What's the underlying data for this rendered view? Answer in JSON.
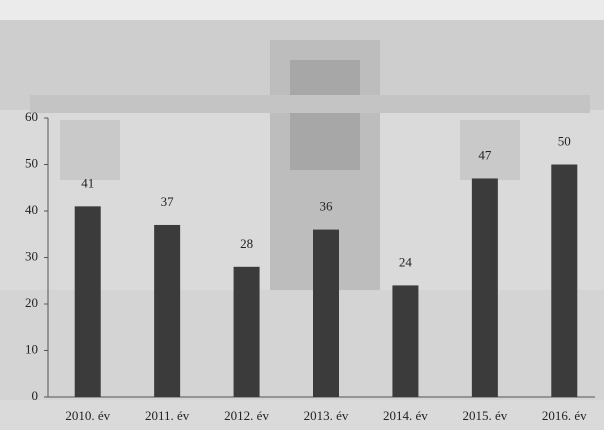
{
  "chart_data": {
    "type": "bar",
    "categories": [
      "2010. év",
      "2011. év",
      "2012. év",
      "2013. év",
      "2014. év",
      "2015. év",
      "2016. év"
    ],
    "values": [
      41,
      37,
      28,
      36,
      24,
      47,
      50
    ],
    "color": "#3b3b3b",
    "ylim": [
      0,
      60
    ],
    "yticks": [
      0,
      10,
      20,
      30,
      40,
      50,
      60
    ]
  }
}
